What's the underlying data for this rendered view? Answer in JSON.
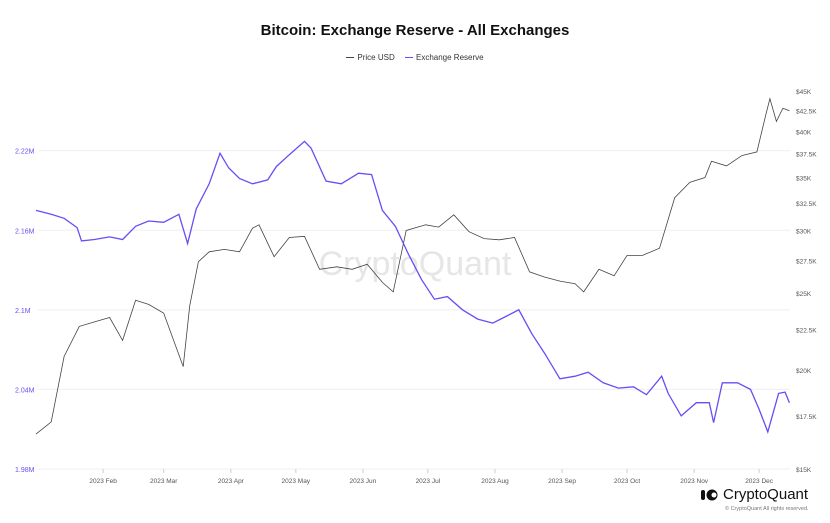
{
  "chart_data": {
    "type": "line",
    "title": "Bitcoin: Exchange Reserve - All Exchanges",
    "legend_position": "top",
    "grid": true,
    "x_ticks": [
      "2023 Feb",
      "2023 Mar",
      "2023 Apr",
      "2023 May",
      "2023 Jun",
      "2023 Jul",
      "2023 Aug",
      "2023 Sep",
      "2023 Oct",
      "2023 Nov",
      "2023 Dec"
    ],
    "left_axis": {
      "ticks": [
        "2.22M",
        "2.16M",
        "2.1M",
        "2.04M",
        "1.98M"
      ],
      "range": [
        1.98,
        2.265
      ],
      "unit": "M",
      "color": "#6a4cf5"
    },
    "right_axis": {
      "ticks": [
        "$45K",
        "$42.5K",
        "$40K",
        "$37.5K",
        "$35K",
        "$32.5K",
        "$30K",
        "$27.5K",
        "$25K",
        "$22.5K",
        "$20K",
        "$17.5K",
        "$15K"
      ],
      "range": [
        15000,
        45000
      ],
      "scale": "log"
    },
    "series": [
      {
        "name": "Price USD",
        "color": "#444444",
        "axis": "right",
        "x": [
          "2023-01-01",
          "2023-01-08",
          "2023-01-14",
          "2023-01-21",
          "2023-01-28",
          "2023-02-04",
          "2023-02-10",
          "2023-02-16",
          "2023-02-22",
          "2023-03-01",
          "2023-03-10",
          "2023-03-13",
          "2023-03-17",
          "2023-03-22",
          "2023-03-29",
          "2023-04-05",
          "2023-04-11",
          "2023-04-14",
          "2023-04-21",
          "2023-04-28",
          "2023-05-05",
          "2023-05-12",
          "2023-05-20",
          "2023-05-27",
          "2023-06-03",
          "2023-06-10",
          "2023-06-15",
          "2023-06-21",
          "2023-06-30",
          "2023-07-06",
          "2023-07-13",
          "2023-07-20",
          "2023-07-27",
          "2023-08-03",
          "2023-08-10",
          "2023-08-17",
          "2023-08-24",
          "2023-08-31",
          "2023-09-07",
          "2023-09-11",
          "2023-09-18",
          "2023-09-25",
          "2023-10-01",
          "2023-10-08",
          "2023-10-16",
          "2023-10-23",
          "2023-10-30",
          "2023-11-06",
          "2023-11-09",
          "2023-11-16",
          "2023-11-23",
          "2023-11-30",
          "2023-12-04",
          "2023-12-06",
          "2023-12-09",
          "2023-12-12",
          "2023-12-15"
        ],
        "values": [
          16600,
          17200,
          20800,
          22700,
          23000,
          23300,
          21800,
          24500,
          24200,
          23600,
          20200,
          24100,
          27400,
          28200,
          28400,
          28200,
          30200,
          30500,
          27800,
          29400,
          29500,
          26800,
          27000,
          26800,
          27200,
          25800,
          25100,
          30000,
          30500,
          30300,
          31400,
          29900,
          29300,
          29200,
          29400,
          26600,
          26200,
          25900,
          25700,
          25100,
          26800,
          26300,
          27900,
          27900,
          28500,
          33000,
          34500,
          35000,
          36700,
          36200,
          37300,
          37700,
          41900,
          44000,
          41200,
          42800,
          42500
        ]
      },
      {
        "name": "Exchange Reserve",
        "color": "#6a4cf5",
        "axis": "left",
        "x": [
          "2023-01-01",
          "2023-01-08",
          "2023-01-14",
          "2023-01-20",
          "2023-01-22",
          "2023-01-28",
          "2023-02-04",
          "2023-02-10",
          "2023-02-16",
          "2023-02-22",
          "2023-03-01",
          "2023-03-08",
          "2023-03-12",
          "2023-03-16",
          "2023-03-22",
          "2023-03-27",
          "2023-03-31",
          "2023-04-05",
          "2023-04-11",
          "2023-04-18",
          "2023-04-22",
          "2023-04-28",
          "2023-05-05",
          "2023-05-08",
          "2023-05-15",
          "2023-05-22",
          "2023-05-30",
          "2023-06-05",
          "2023-06-10",
          "2023-06-16",
          "2023-06-22",
          "2023-06-28",
          "2023-07-04",
          "2023-07-10",
          "2023-07-17",
          "2023-07-24",
          "2023-07-31",
          "2023-08-06",
          "2023-08-12",
          "2023-08-18",
          "2023-08-24",
          "2023-08-31",
          "2023-09-07",
          "2023-09-13",
          "2023-09-20",
          "2023-09-27",
          "2023-10-04",
          "2023-10-10",
          "2023-10-17",
          "2023-10-20",
          "2023-10-26",
          "2023-11-02",
          "2023-11-08",
          "2023-11-10",
          "2023-11-14",
          "2023-11-21",
          "2023-11-27",
          "2023-12-01",
          "2023-12-05",
          "2023-12-10",
          "2023-12-13",
          "2023-12-15"
        ],
        "values": [
          2.175,
          2.172,
          2.169,
          2.162,
          2.152,
          2.153,
          2.155,
          2.153,
          2.163,
          2.167,
          2.166,
          2.172,
          2.15,
          2.176,
          2.195,
          2.218,
          2.207,
          2.199,
          2.195,
          2.198,
          2.208,
          2.217,
          2.227,
          2.222,
          2.197,
          2.195,
          2.203,
          2.202,
          2.175,
          2.163,
          2.142,
          2.123,
          2.108,
          2.11,
          2.1,
          2.093,
          2.09,
          2.095,
          2.1,
          2.082,
          2.067,
          2.048,
          2.05,
          2.053,
          2.045,
          2.041,
          2.042,
          2.036,
          2.05,
          2.037,
          2.02,
          2.03,
          2.03,
          2.015,
          2.045,
          2.045,
          2.04,
          2.025,
          2.008,
          2.037,
          2.038,
          2.03
        ]
      }
    ]
  },
  "watermark": "CryptoQuant",
  "logo": "CryptoQuant",
  "copyright": "© CryptoQuant All rights reserved."
}
